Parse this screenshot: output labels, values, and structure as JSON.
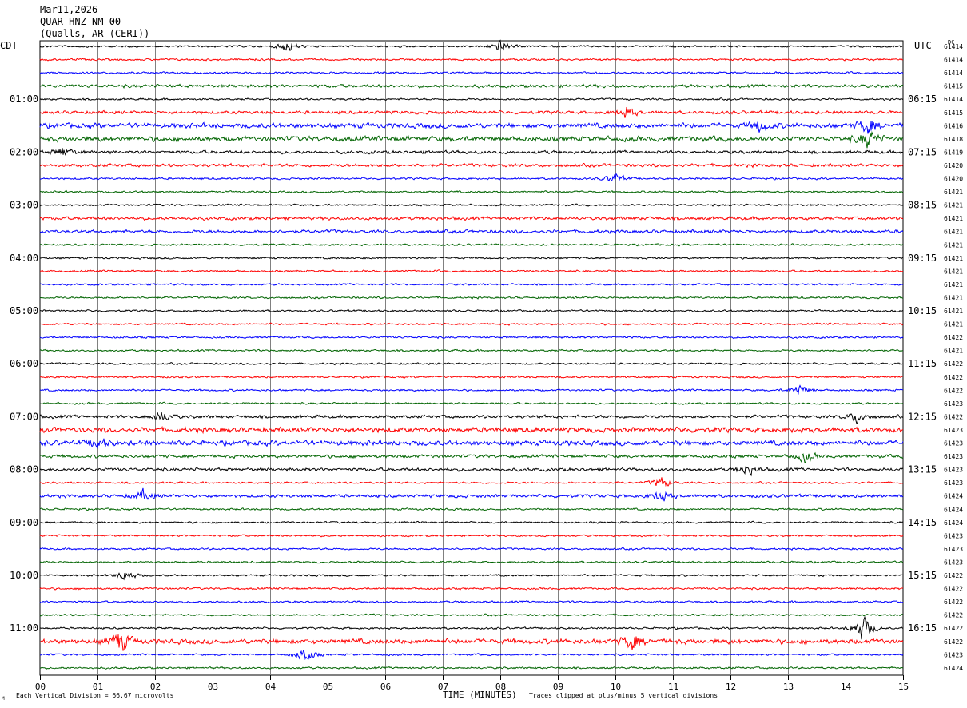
{
  "header": {
    "date": "Mar11,2026",
    "station": "QUAR HNZ NM 00",
    "location": "(Qualls, AR (CERI))"
  },
  "timezones": {
    "left": "CDT",
    "right": "UTC",
    "dc_label": "DC"
  },
  "footer": {
    "scale_note": "Each Vertical Division =   66.67 microvolts",
    "clip_note": "Traces clipped at plus/minus 5 vertical divisions",
    "corner_mark": "M"
  },
  "chart_data": {
    "type": "line",
    "title": "",
    "xlabel": "TIME (MINUTES)",
    "ylabel": "",
    "xlim": [
      0,
      15
    ],
    "x_ticks": [
      "00",
      "01",
      "02",
      "03",
      "04",
      "05",
      "06",
      "07",
      "08",
      "09",
      "10",
      "11",
      "12",
      "13",
      "14",
      "15"
    ],
    "grid": "vertical lines every minute",
    "trace_colors": [
      "#000000",
      "#ff0000",
      "#0000ff",
      "#006400"
    ],
    "rows_per_hour": 4,
    "hour_labels_cdt": [
      "01:00",
      "02:00",
      "03:00",
      "04:00",
      "05:00",
      "06:00",
      "07:00",
      "08:00",
      "09:00",
      "10:00",
      "11:00"
    ],
    "hour_labels_utc": [
      "06:15",
      "07:15",
      "08:15",
      "09:15",
      "10:15",
      "11:15",
      "12:15",
      "13:15",
      "14:15",
      "15:15",
      "16:15"
    ],
    "dc_values": [
      "61414",
      "61414",
      "61414",
      "61415",
      "61414",
      "61415",
      "61416",
      "61418",
      "61419",
      "61420",
      "61420",
      "61421",
      "61421",
      "61421",
      "61421",
      "61421",
      "61421",
      "61421",
      "61421",
      "61421",
      "61421",
      "61421",
      "61422",
      "61421",
      "61422",
      "61422",
      "61422",
      "61423",
      "61422",
      "61423",
      "61423",
      "61423",
      "61423",
      "61423",
      "61424",
      "61424",
      "61424",
      "61423",
      "61423",
      "61423",
      "61422",
      "61422",
      "61422",
      "61422",
      "61422",
      "61422",
      "61423",
      "61424"
    ],
    "amplitude_levels": [
      1,
      1,
      1,
      2,
      1,
      2,
      3,
      3,
      2,
      2,
      1,
      1,
      1,
      2,
      2,
      1,
      1,
      1,
      1,
      1,
      1,
      1,
      1,
      1,
      1,
      1,
      1,
      1,
      2,
      3,
      3,
      2,
      2,
      1,
      2,
      1,
      1,
      1,
      1,
      1,
      1,
      1,
      1,
      1,
      1,
      3,
      1,
      1
    ],
    "events": [
      {
        "row": 0,
        "minute": 4.3,
        "size": 2
      },
      {
        "row": 0,
        "minute": 8.0,
        "size": 2
      },
      {
        "row": 5,
        "minute": 10.2,
        "size": 2
      },
      {
        "row": 6,
        "minute": 12.5,
        "size": 2
      },
      {
        "row": 6,
        "minute": 14.4,
        "size": 3
      },
      {
        "row": 7,
        "minute": 14.4,
        "size": 3
      },
      {
        "row": 8,
        "minute": 0.4,
        "size": 2
      },
      {
        "row": 10,
        "minute": 10.0,
        "size": 2
      },
      {
        "row": 26,
        "minute": 13.2,
        "size": 2
      },
      {
        "row": 28,
        "minute": 2.1,
        "size": 2
      },
      {
        "row": 28,
        "minute": 14.2,
        "size": 2
      },
      {
        "row": 30,
        "minute": 1.0,
        "size": 2
      },
      {
        "row": 31,
        "minute": 13.3,
        "size": 2
      },
      {
        "row": 32,
        "minute": 12.3,
        "size": 2
      },
      {
        "row": 33,
        "minute": 10.8,
        "size": 2
      },
      {
        "row": 34,
        "minute": 1.8,
        "size": 2
      },
      {
        "row": 34,
        "minute": 10.8,
        "size": 2
      },
      {
        "row": 40,
        "minute": 1.5,
        "size": 2
      },
      {
        "row": 44,
        "minute": 14.3,
        "size": 5
      },
      {
        "row": 45,
        "minute": 1.4,
        "size": 4
      },
      {
        "row": 45,
        "minute": 10.3,
        "size": 3
      },
      {
        "row": 46,
        "minute": 4.6,
        "size": 3
      }
    ]
  }
}
